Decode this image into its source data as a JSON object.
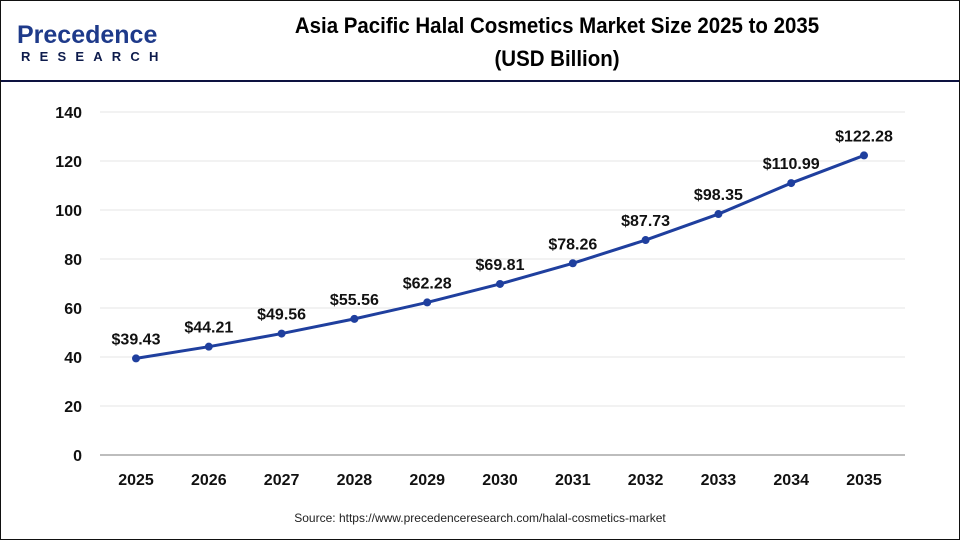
{
  "header": {
    "logo_main": "Precedence",
    "logo_sub": "RESEARCH",
    "title_line1": "Asia Pacific Halal Cosmetics Market Size 2025 to 2035",
    "title_line2": "(USD Billion)"
  },
  "footer": {
    "source": "Source: https://www.precedenceresearch.com/halal-cosmetics-market"
  },
  "colors": {
    "line": "#1f3f9e",
    "marker": "#1f3f9e",
    "grid": "#e6e6e6",
    "axis": "#bdbdbd",
    "title_bar": "#0d1240"
  },
  "chart_data": {
    "type": "line",
    "title": "Asia Pacific Halal Cosmetics Market Size 2025 to 2035 (USD Billion)",
    "xlabel": "",
    "ylabel": "",
    "categories": [
      "2025",
      "2026",
      "2027",
      "2028",
      "2029",
      "2030",
      "2031",
      "2032",
      "2033",
      "2034",
      "2035"
    ],
    "series": [
      {
        "name": "Market Size (USD Billion)",
        "values": [
          39.43,
          44.21,
          49.56,
          55.56,
          62.28,
          69.81,
          78.26,
          87.73,
          98.35,
          110.99,
          122.28
        ],
        "labels": [
          "$39.43",
          "$44.21",
          "$49.56",
          "$55.56",
          "$62.28",
          "$69.81",
          "$78.26",
          "$87.73",
          "$98.35",
          "$110.99",
          "$122.28"
        ]
      }
    ],
    "ylim": [
      0,
      140
    ],
    "yticks": [
      0,
      20,
      40,
      60,
      80,
      100,
      120,
      140
    ],
    "grid": true,
    "legend": "none"
  }
}
